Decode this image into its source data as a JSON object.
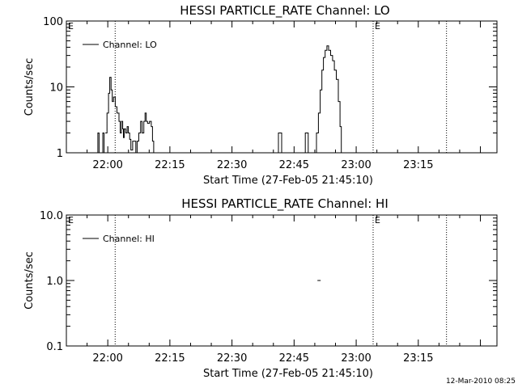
{
  "footer": {
    "timestamp": "12-Mar-2010 08:25"
  },
  "chart_data": [
    {
      "type": "line",
      "title": "HESSI PARTICLE_RATE Channel: LO",
      "xlabel": "Start Time (27-Feb-05 21:45:10)",
      "ylabel": "Counts/sec",
      "yscale": "log",
      "ylim": [
        1,
        100
      ],
      "xlim_minutes": [
        21.8333,
        23.5667
      ],
      "x_ticks": [
        {
          "t": 22.0,
          "label": "22:00"
        },
        {
          "t": 22.25,
          "label": "22:15"
        },
        {
          "t": 22.5,
          "label": "22:30"
        },
        {
          "t": 22.75,
          "label": "22:45"
        },
        {
          "t": 23.0,
          "label": "23:00"
        },
        {
          "t": 23.25,
          "label": "23:15"
        }
      ],
      "y_ticks": [
        {
          "v": 1,
          "label": "1"
        },
        {
          "v": 10,
          "label": "10"
        },
        {
          "v": 100,
          "label": "100"
        }
      ],
      "legend": {
        "label": "Channel: LO",
        "position": "top-left"
      },
      "event_lines": [
        {
          "t": 22.0297,
          "marker": ""
        },
        {
          "t": 23.0682,
          "marker": "E"
        },
        {
          "t": 23.3636,
          "marker": ""
        }
      ],
      "left_marker": "E",
      "series": [
        {
          "segments": [
            [
              [
                21.955,
                1
              ],
              [
                21.96,
                2
              ],
              [
                21.965,
                1
              ]
            ],
            [
              [
                21.975,
                1
              ],
              [
                21.98,
                2
              ],
              [
                21.985,
                1
              ]
            ],
            [
              [
                21.99,
                2
              ],
              [
                21.997,
                4
              ],
              [
                22.003,
                8
              ],
              [
                22.008,
                14
              ],
              [
                22.013,
                9
              ],
              [
                22.018,
                6
              ],
              [
                22.023,
                7
              ],
              [
                22.03,
                5
              ],
              [
                22.037,
                4
              ],
              [
                22.045,
                3
              ],
              [
                22.05,
                2
              ],
              [
                22.055,
                3
              ],
              [
                22.06,
                2.3
              ],
              [
                22.063,
                1.7
              ],
              [
                22.066,
                2.3
              ],
              [
                22.072,
                2
              ],
              [
                22.078,
                2.5
              ],
              [
                22.083,
                2
              ],
              [
                22.088,
                1.6
              ],
              [
                22.093,
                1.1
              ],
              [
                22.1,
                1.5
              ],
              [
                22.107,
                1.5
              ],
              [
                22.113,
                1
              ],
              [
                22.118,
                1.5
              ],
              [
                22.125,
                2
              ],
              [
                22.132,
                3
              ],
              [
                22.138,
                2
              ],
              [
                22.145,
                3
              ],
              [
                22.15,
                4
              ],
              [
                22.155,
                3
              ],
              [
                22.16,
                2.8
              ],
              [
                22.168,
                3
              ],
              [
                22.175,
                2.5
              ],
              [
                22.18,
                1.5
              ],
              [
                22.185,
                1
              ]
            ],
            [
              [
                22.685,
                1
              ],
              [
                22.687,
                2
              ],
              [
                22.697,
                2
              ],
              [
                22.7,
                1
              ]
            ],
            [
              [
                22.79,
                1
              ],
              [
                22.795,
                2
              ],
              [
                22.803,
                2
              ],
              [
                22.807,
                1
              ]
            ],
            [
              [
                22.835,
                1
              ],
              [
                22.84,
                2
              ],
              [
                22.848,
                4
              ],
              [
                22.855,
                9
              ],
              [
                22.862,
                18
              ],
              [
                22.868,
                28
              ],
              [
                22.875,
                36
              ],
              [
                22.882,
                42
              ],
              [
                22.889,
                36
              ],
              [
                22.897,
                30
              ],
              [
                22.905,
                25
              ],
              [
                22.912,
                18
              ],
              [
                22.92,
                13
              ],
              [
                22.928,
                6
              ],
              [
                22.935,
                2.5
              ],
              [
                22.94,
                1
              ]
            ]
          ]
        }
      ]
    },
    {
      "type": "line",
      "title": "HESSI PARTICLE_RATE Channel: HI",
      "xlabel": "Start Time (27-Feb-05 21:45:10)",
      "ylabel": "Counts/sec",
      "yscale": "log",
      "ylim": [
        0.1,
        10
      ],
      "xlim_minutes": [
        21.8333,
        23.5667
      ],
      "x_ticks": [
        {
          "t": 22.0,
          "label": "22:00"
        },
        {
          "t": 22.25,
          "label": "22:15"
        },
        {
          "t": 22.5,
          "label": "22:30"
        },
        {
          "t": 22.75,
          "label": "22:45"
        },
        {
          "t": 23.0,
          "label": "23:00"
        },
        {
          "t": 23.25,
          "label": "23:15"
        }
      ],
      "y_ticks": [
        {
          "v": 0.1,
          "label": "0.1"
        },
        {
          "v": 1,
          "label": "1.0"
        },
        {
          "v": 10,
          "label": "10.0"
        }
      ],
      "legend": {
        "label": "Channel: HI",
        "position": "top-left"
      },
      "event_lines": [
        {
          "t": 22.0297,
          "marker": ""
        },
        {
          "t": 23.0682,
          "marker": "E"
        },
        {
          "t": 23.3636,
          "marker": ""
        }
      ],
      "left_marker": "E",
      "series": [
        {
          "segments": [
            [
              [
                22.844,
                1
              ],
              [
                22.857,
                1
              ]
            ]
          ]
        }
      ]
    }
  ]
}
